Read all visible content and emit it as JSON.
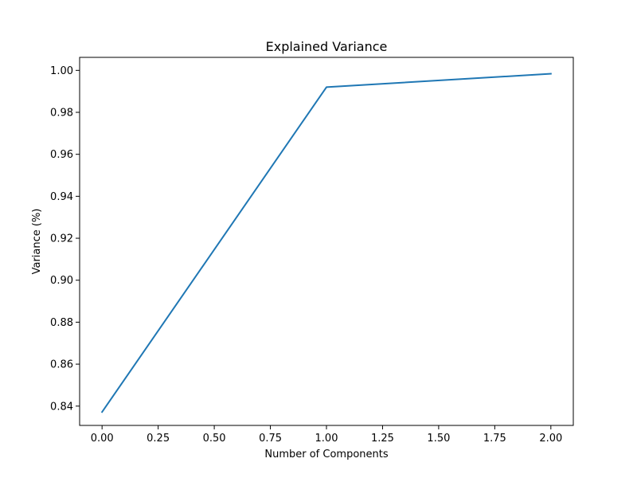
{
  "chart_data": {
    "type": "line",
    "title": "Explained Variance",
    "xlabel": "Number of Components",
    "ylabel": "Variance (%)",
    "xlim": [
      -0.1,
      2.1
    ],
    "ylim": [
      0.8308,
      1.0062
    ],
    "xticks": [
      0.0,
      0.25,
      0.5,
      0.75,
      1.0,
      1.25,
      1.5,
      1.75,
      2.0
    ],
    "xtick_labels": [
      "0.00",
      "0.25",
      "0.50",
      "0.75",
      "1.00",
      "1.25",
      "1.50",
      "1.75",
      "2.00"
    ],
    "yticks": [
      0.84,
      0.86,
      0.88,
      0.9,
      0.92,
      0.94,
      0.96,
      0.98,
      1.0
    ],
    "ytick_labels": [
      "0.84",
      "0.86",
      "0.88",
      "0.90",
      "0.92",
      "0.94",
      "0.96",
      "0.98",
      "1.00"
    ],
    "grid": false,
    "series": [
      {
        "color": "#1f77b4",
        "x": [
          0,
          1,
          2
        ],
        "y": [
          0.8372,
          0.992,
          0.9984
        ]
      }
    ]
  }
}
